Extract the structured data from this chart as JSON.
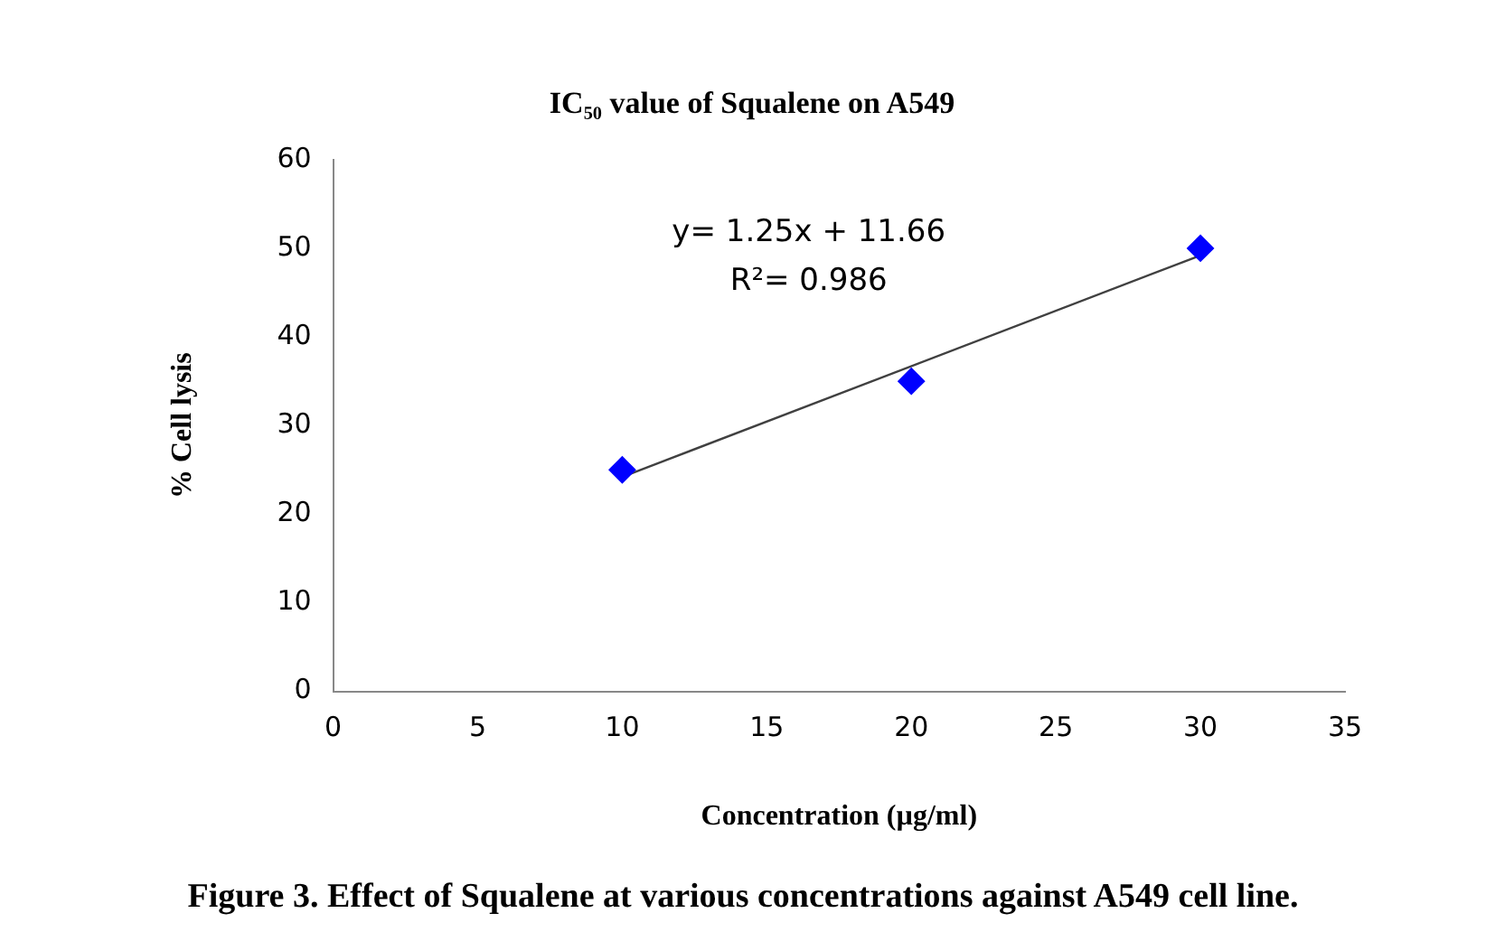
{
  "chart_data": {
    "type": "scatter",
    "title": "IC₅₀ value of Squalene on A549",
    "xlabel": "Concentration (µg/ml)",
    "ylabel": "% Cell lysis",
    "x": [
      10,
      20,
      30
    ],
    "series": [
      {
        "type": "scatter",
        "color": "#0000ff",
        "values": [
          25,
          35,
          50
        ],
        "marker": "diamond"
      },
      {
        "type": "line",
        "color": "#404040",
        "x": [
          10,
          30
        ],
        "values": [
          24.2,
          49.2
        ],
        "marker": "none"
      }
    ],
    "xlim": [
      0,
      35
    ],
    "xticks": [
      0,
      5,
      10,
      15,
      20,
      25,
      30,
      35
    ],
    "ylim": [
      0,
      60
    ],
    "yticks": [
      0,
      10,
      20,
      30,
      40,
      50,
      60
    ],
    "grid": false,
    "legend": false,
    "annotations": [
      "y= 1.25x + 11.66",
      "R²= 0.986",
      "Figure 3. Effect of Squalene at various concentrations against A549 cell line."
    ]
  }
}
